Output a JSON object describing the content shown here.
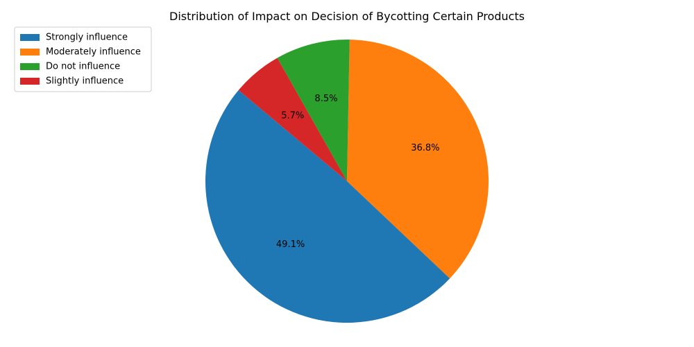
{
  "chart_data": {
    "type": "pie",
    "title": "Distribution of Impact on Decision of Bycotting Certain Products",
    "categories": [
      "Strongly influence",
      "Moderately influence",
      "Do not influence",
      "Slightly influence"
    ],
    "values": [
      49.1,
      36.8,
      8.5,
      5.7
    ],
    "value_labels": [
      "49.1%",
      "36.8%",
      "8.5%",
      "5.7%"
    ],
    "colors": [
      "#1f77b4",
      "#ff7f0e",
      "#2ca02c",
      "#d62728"
    ],
    "start_angle_deg": 140,
    "direction": "counterclockwise",
    "legend": {
      "position": "top-left",
      "entries": [
        "Strongly influence",
        "Moderately influence",
        "Do not influence",
        "Slightly influence"
      ]
    }
  }
}
